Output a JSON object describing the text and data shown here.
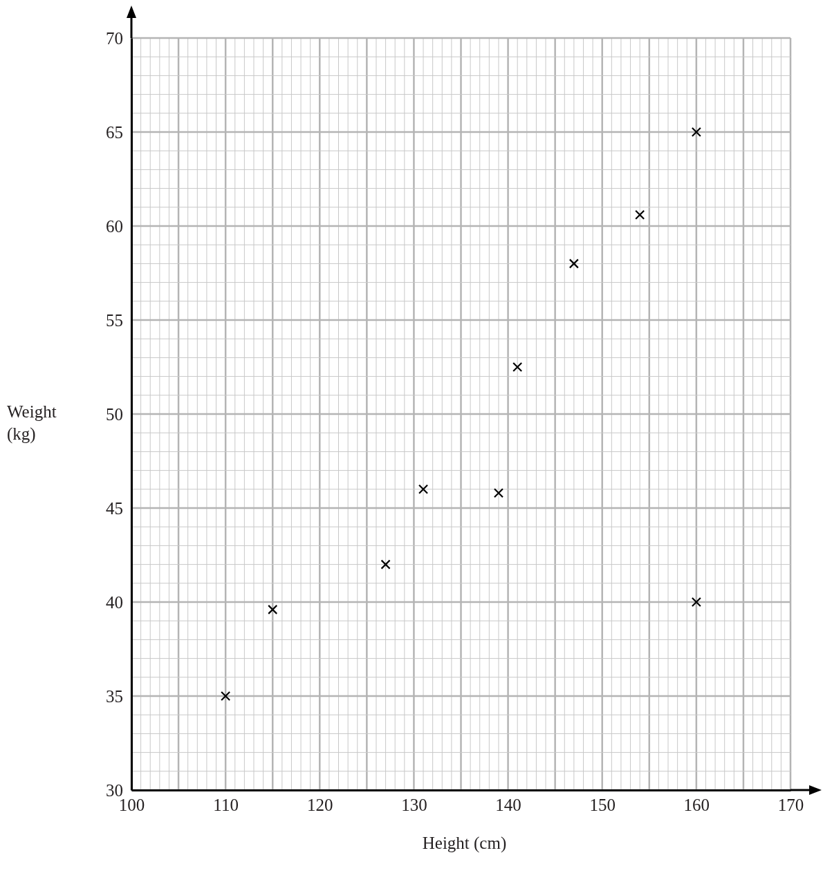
{
  "chart_data": {
    "type": "scatter",
    "xlabel": "Height (cm)",
    "ylabel": "Weight (kg)",
    "x": [
      110,
      115,
      127,
      131,
      139,
      141,
      147,
      154,
      160,
      160
    ],
    "values": [
      35,
      39.6,
      42,
      46,
      45.8,
      52.5,
      58,
      60.6,
      65,
      40
    ],
    "color": "#000000",
    "marker": "cross",
    "grid": true,
    "xlim": [
      100,
      170
    ],
    "ylim": [
      30,
      70
    ],
    "xticks": [
      100,
      {
        "value": 105,
        "label": null
      },
      110,
      {
        "value": 115,
        "label": null
      },
      120,
      {
        "value": 125,
        "label": null
      },
      130,
      {
        "value": 135,
        "label": null
      },
      140,
      {
        "value": 145,
        "label": null
      },
      150,
      {
        "value": 155,
        "label": null
      },
      160,
      {
        "value": 165,
        "label": null
      },
      170
    ],
    "yticks": [
      30,
      35,
      40,
      45,
      50,
      55,
      60,
      65,
      70
    ]
  }
}
